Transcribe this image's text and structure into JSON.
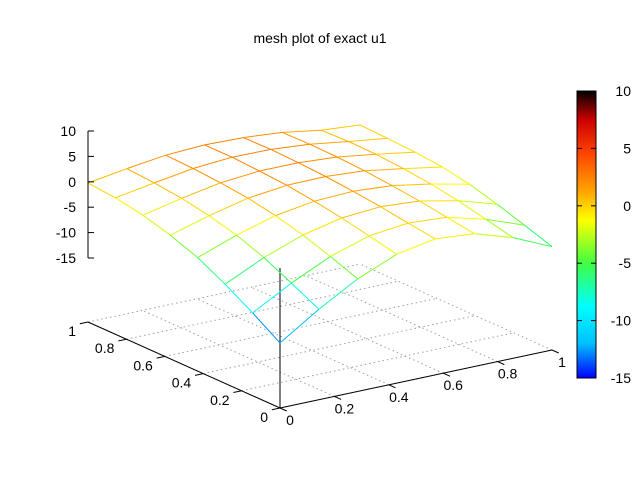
{
  "chart_data": {
    "type": "surface-mesh",
    "title": "mesh plot of exact u1",
    "x_ticks": [
      "0",
      "0.2",
      "0.4",
      "0.6",
      "0.8",
      "1"
    ],
    "y_ticks": [
      "0",
      "0.2",
      "0.4",
      "0.6",
      "0.8",
      "1"
    ],
    "z_ticks": [
      "10",
      "5",
      "0",
      "-5",
      "-10",
      "-15"
    ],
    "colorbar": {
      "ticks": [
        "10",
        "5",
        "0",
        "-5",
        "-10",
        "-15"
      ],
      "range": [
        -15,
        10
      ],
      "colormap": [
        "#0000ff",
        "#00bfff",
        "#00ffff",
        "#40ff40",
        "#ffff00",
        "#ffa500",
        "#ff4500",
        "#cc0000",
        "#000000"
      ]
    },
    "xlim": [
      0,
      1
    ],
    "ylim": [
      0,
      1
    ],
    "zlim": [
      -15,
      10
    ],
    "grid": true,
    "mesh": {
      "nx": 8,
      "ny": 8,
      "z": [
        [
          0.0,
          1.2,
          2.2,
          2.6,
          2.4,
          1.8,
          0.6,
          0.0
        ],
        [
          -0.5,
          0.8,
          2.0,
          2.6,
          2.5,
          1.9,
          0.8,
          -0.2
        ],
        [
          -1.5,
          0.2,
          1.6,
          2.3,
          2.3,
          1.8,
          0.7,
          -0.5
        ],
        [
          -3.0,
          -0.8,
          1.0,
          1.9,
          2.0,
          1.5,
          0.3,
          -1.0
        ],
        [
          -5.0,
          -2.2,
          0.0,
          1.2,
          1.5,
          1.0,
          -0.3,
          -2.0
        ],
        [
          -7.8,
          -4.2,
          -1.4,
          0.3,
          0.9,
          0.4,
          -1.2,
          -3.5
        ],
        [
          -11.0,
          -6.8,
          -3.2,
          -0.8,
          0.1,
          -0.4,
          -2.4,
          -5.2
        ],
        [
          -14.5,
          -9.5,
          -5.2,
          -2.0,
          -0.6,
          -1.2,
          -3.6,
          -7.0
        ]
      ]
    }
  }
}
